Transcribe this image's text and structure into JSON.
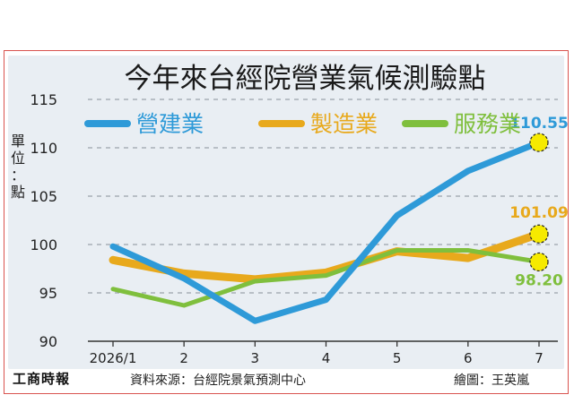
{
  "chart_data": {
    "type": "line",
    "title": "今年來台經院營業氣候測驗點",
    "ylabel": "單位：點",
    "categories": [
      "2026/1",
      "2",
      "3",
      "4",
      "5",
      "6",
      "7"
    ],
    "ylim": [
      90,
      115
    ],
    "yticks": [
      90,
      95,
      100,
      105,
      110,
      115
    ],
    "grid": true,
    "legend_position": "top",
    "series": [
      {
        "name": "營建業",
        "color": "#2e9ad8",
        "values": [
          99.8,
          96.5,
          92.1,
          94.3,
          103.0,
          107.6,
          110.55
        ],
        "end_label": "110.55"
      },
      {
        "name": "製造業",
        "color": "#e8a91c",
        "values": [
          98.4,
          97.0,
          96.4,
          97.1,
          99.3,
          98.6,
          101.09
        ],
        "end_label": "101.09"
      },
      {
        "name": "服務業",
        "color": "#7fbf3d",
        "values": [
          95.4,
          93.7,
          96.2,
          96.8,
          99.4,
          99.4,
          98.2
        ],
        "end_label": "98.20"
      }
    ]
  },
  "footer": {
    "logo": "工商時報",
    "source": "資料來源：台經院景氣預測中心",
    "credit": "繪圖：王英嵐"
  }
}
